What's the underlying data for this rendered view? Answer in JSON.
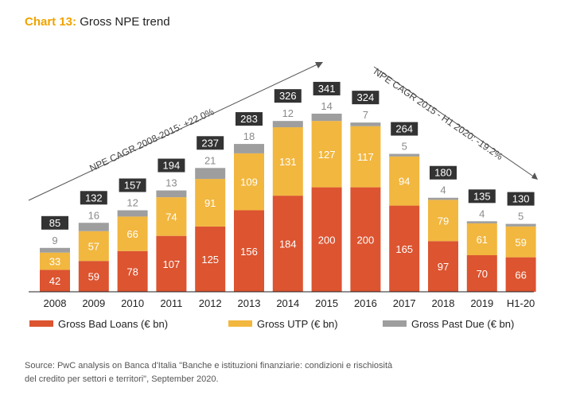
{
  "title": {
    "prefix": "Chart 13:",
    "text": "Gross NPE trend"
  },
  "source": {
    "line1": "Source: PwC analysis on Banca d'Italia \"Banche e istituzioni finanziarie: condizioni e rischiosità",
    "line2": "del credito per settori e territori\", September 2020."
  },
  "colors": {
    "bad_loans": "#dc5430",
    "utp": "#f2b73f",
    "past_due": "#9e9e9e",
    "total_box": "#333333"
  },
  "chart_data": {
    "type": "bar",
    "stacked": true,
    "categories": [
      "2008",
      "2009",
      "2010",
      "2011",
      "2012",
      "2013",
      "2014",
      "2015",
      "2016",
      "2017",
      "2018",
      "2019",
      "H1-20"
    ],
    "series": [
      {
        "name": "Gross Bad Loans (€ bn)",
        "values": [
          42,
          59,
          78,
          107,
          125,
          156,
          184,
          200,
          200,
          165,
          97,
          70,
          66
        ]
      },
      {
        "name": "Gross UTP (€ bn)",
        "values": [
          33,
          57,
          66,
          74,
          91,
          109,
          131,
          127,
          117,
          94,
          79,
          61,
          59
        ]
      },
      {
        "name": "Gross Past Due (€ bn)",
        "values": [
          9,
          16,
          12,
          13,
          21,
          18,
          12,
          14,
          7,
          5,
          4,
          4,
          5
        ]
      }
    ],
    "totals": [
      85,
      132,
      157,
      194,
      237,
      283,
      326,
      341,
      324,
      264,
      180,
      135,
      130
    ],
    "annotations": [
      {
        "text": "NPE CAGR 2008-2015: +22.0%"
      },
      {
        "text": "NPE CAGR 2015 - H1 2020: -19.2%"
      }
    ],
    "legend_position": "bottom"
  }
}
